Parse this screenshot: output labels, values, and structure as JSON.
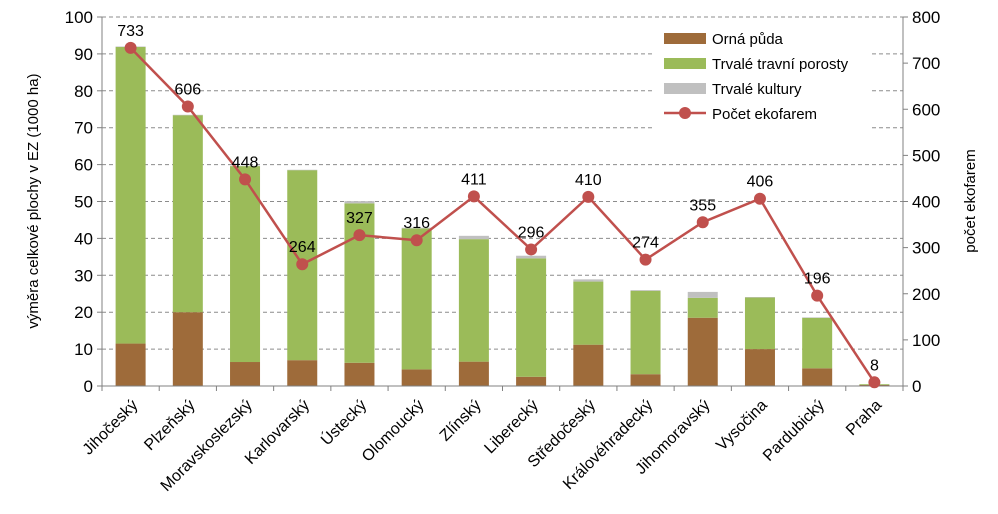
{
  "chart_data": {
    "type": "bar",
    "stacked": true,
    "categories": [
      "Jihočeský",
      "Plzeňský",
      "Moravskoslezský",
      "Karlovarský",
      "Ústecký",
      "Olomoucký",
      "Zlínský",
      "Liberecký",
      "Středočeský",
      "Královéhradecký",
      "Jihomoravský",
      "Vysočina",
      "Pardubický",
      "Praha"
    ],
    "series": [
      {
        "name": "Orná půda",
        "color": "#9e6b3a",
        "values": [
          11.5,
          20,
          6.5,
          7,
          6.3,
          4.5,
          6.6,
          2.5,
          11.2,
          3.2,
          18.5,
          10,
          4.8,
          0.3
        ]
      },
      {
        "name": "Trvalé travní porosty",
        "color": "#9bbb59",
        "values": [
          80.4,
          53.4,
          53.1,
          51.5,
          43.2,
          38.2,
          33.2,
          32.1,
          17.1,
          22.6,
          5.4,
          14,
          13.7,
          0.2
        ]
      },
      {
        "name": "Trvalé kultury",
        "color": "#c0c0c0",
        "values": [
          0.1,
          0.1,
          0.1,
          0.1,
          0.6,
          0.2,
          0.9,
          0.7,
          0.6,
          0.2,
          1.6,
          0.1,
          0.1,
          0
        ]
      }
    ],
    "line_series": {
      "name": "Počet ekofarem",
      "color": "#c0504d",
      "axis": "right",
      "values": [
        733,
        606,
        448,
        264,
        327,
        316,
        411,
        296,
        410,
        274,
        355,
        406,
        196,
        8
      ]
    },
    "ylabel": "výměra celkové plochy v EZ (1000 ha)",
    "y2label": "počet ekofarem",
    "ylim": [
      0,
      100
    ],
    "y2lim": [
      0,
      800
    ],
    "yticks": [
      "0",
      "10",
      "20",
      "30",
      "40",
      "50",
      "60",
      "70",
      "80",
      "90",
      "100"
    ],
    "y2ticks": [
      "0",
      "100",
      "200",
      "300",
      "400",
      "500",
      "600",
      "700",
      "800"
    ],
    "grid": true,
    "legend": "top-right"
  }
}
